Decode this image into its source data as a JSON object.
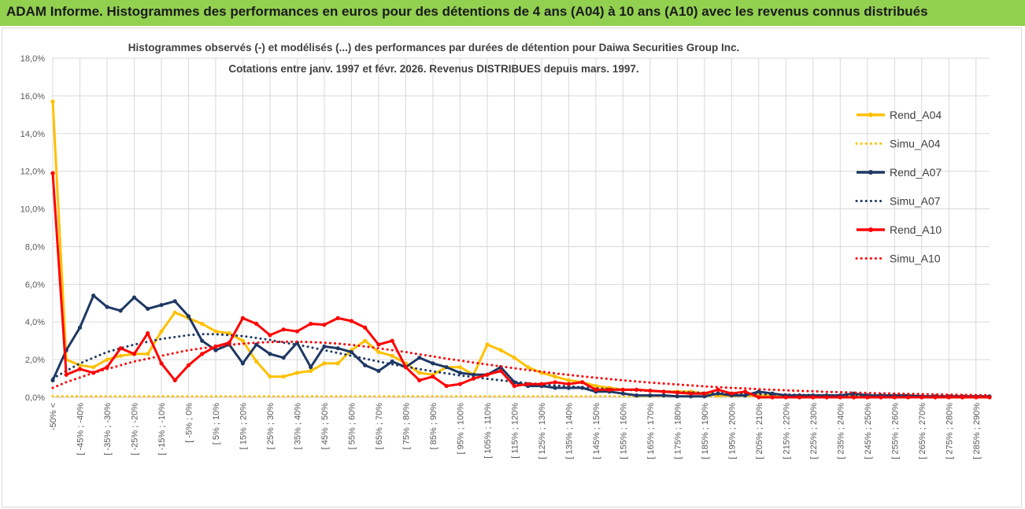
{
  "banner": {
    "title": "ADAM Informe. Histogrammes des performances en euros pour des détentions de 4 ans (A04) à 10 ans (A10) avec les revenus connus distribués"
  },
  "colors": {
    "banner_bg": "#92d050",
    "a04": "#ffc000",
    "a07": "#1f3864",
    "a10": "#ff0000",
    "grid": "#d9d9d9"
  },
  "chart_data": {
    "type": "line",
    "title_lines": [
      "Histogrammes observés (-) et modélisés (...) des performances par durées de détention pour Daiwa Securities Group Inc.",
      "Cotations entre janv. 1997 et févr. 2026. Revenus DISTRIBUES depuis mars. 1997."
    ],
    "xlabel": "",
    "ylabel": "",
    "ylim": [
      0,
      18
    ],
    "yticks": [
      "0,0%",
      "2,0%",
      "4,0%",
      "6,0%",
      "8,0%",
      "10,0%",
      "12,0%",
      "14,0%",
      "16,0%",
      "18,0%"
    ],
    "grid": true,
    "legend_position": "right",
    "category_labels": [
      "-50% <",
      "[ -45% ; -40%",
      "[ -35% ; -30%",
      "[ -25% ; -20%",
      "[ -15% ; -10%",
      "[ -5% ; 0%",
      "[ 5% ; 10%",
      "[ 15% ; 20%",
      "[ 25% ; 30%",
      "[ 35% ; 40%",
      "[ 45% ; 50%",
      "[ 55% ; 60%",
      "[ 65% ; 70%",
      "[ 75% ; 80%",
      "[ 85% ; 90%",
      "[ 95% ; 100%",
      "[ 105% ; 110%",
      "[ 115% ; 120%",
      "[ 125% ; 130%",
      "[ 135% ; 140%",
      "[ 145% ; 150%",
      "[ 155% ; 160%",
      "[ 165% ; 170%",
      "[ 175% ; 180%",
      "[ 185% ; 190%",
      "[ 195% ; 200%",
      "[ 205% ; 210%",
      "[ 215% ; 220%",
      "[ 225% ; 230%",
      "[ 235% ; 240%",
      "[ 245% ; 250%",
      "[ 255% ; 260%",
      "[ 265% ; 270%",
      "[ 275% ; 280%",
      "[ 285% ; 290%"
    ],
    "n_points": 70,
    "series": [
      {
        "name": "Rend_A04",
        "style": "solid",
        "color": "#ffc000",
        "values": [
          15.7,
          2.0,
          1.7,
          1.6,
          2.0,
          2.2,
          2.3,
          2.3,
          3.5,
          4.5,
          4.2,
          3.9,
          3.5,
          3.4,
          3.0,
          1.9,
          1.1,
          1.1,
          1.3,
          1.4,
          1.8,
          1.8,
          2.5,
          3.0,
          2.4,
          2.2,
          1.8,
          1.3,
          1.2,
          1.6,
          1.6,
          1.2,
          2.8,
          2.5,
          2.1,
          1.6,
          1.3,
          1.1,
          0.9,
          0.8,
          0.6,
          0.5,
          0.4,
          0.4,
          0.35,
          0.3,
          0.3,
          0.3,
          0.2,
          0.1,
          0.1,
          0.1,
          0.1,
          0.1,
          0.1,
          0.0,
          0.0,
          0.0,
          0.0,
          0.0,
          0.0,
          0.0,
          0.0,
          0.0,
          0.0,
          0.0,
          0.0,
          0.0,
          0.0,
          0.0
        ]
      },
      {
        "name": "Simu_A04",
        "style": "dotted",
        "color": "#ffc000",
        "values": [
          0.05,
          0.05,
          0.05,
          0.05,
          0.05,
          0.05,
          0.05,
          0.05,
          0.05,
          0.05,
          0.05,
          0.05,
          0.05,
          0.05,
          0.05,
          0.05,
          0.05,
          0.05,
          0.05,
          0.05,
          0.05,
          0.05,
          0.05,
          0.05,
          0.05,
          0.05,
          0.05,
          0.05,
          0.05,
          0.05,
          0.05,
          0.05,
          0.05,
          0.05,
          0.05,
          0.05,
          0.05,
          0.05,
          0.05,
          0.05,
          0.05,
          0.05,
          0.05,
          0.05,
          0.05,
          0.05,
          0.05,
          0.05,
          0.05,
          0.05,
          0.05,
          0.05,
          0.05,
          0.05,
          0.05,
          0.05,
          0.05,
          0.05,
          0.05,
          0.05,
          0.05,
          0.05,
          0.05,
          0.05,
          0.05,
          0.05,
          0.05,
          0.05,
          0.05,
          0.05
        ]
      },
      {
        "name": "Rend_A07",
        "style": "solid",
        "color": "#1f3864",
        "values": [
          0.9,
          2.5,
          3.7,
          5.4,
          4.8,
          4.6,
          5.3,
          4.7,
          4.9,
          5.1,
          4.3,
          3.0,
          2.5,
          2.8,
          1.8,
          2.8,
          2.3,
          2.1,
          2.9,
          1.6,
          2.7,
          2.6,
          2.4,
          1.7,
          1.4,
          1.9,
          1.6,
          2.1,
          1.8,
          1.6,
          1.3,
          1.2,
          1.2,
          1.6,
          0.8,
          0.6,
          0.6,
          0.5,
          0.5,
          0.5,
          0.3,
          0.3,
          0.2,
          0.1,
          0.1,
          0.1,
          0.05,
          0.05,
          0.05,
          0.2,
          0.1,
          0.1,
          0.3,
          0.2,
          0.1,
          0.1,
          0.1,
          0.1,
          0.1,
          0.2,
          0.1,
          0.1,
          0.1,
          0.1,
          0.05,
          0.05,
          0.05,
          0.05,
          0.05,
          0.05
        ]
      },
      {
        "name": "Simu_A07",
        "style": "dotted",
        "color": "#1f3864",
        "values": [
          1.0,
          1.4,
          1.8,
          2.1,
          2.4,
          2.6,
          2.8,
          2.95,
          3.1,
          3.2,
          3.3,
          3.35,
          3.35,
          3.3,
          3.25,
          3.15,
          3.05,
          2.9,
          2.8,
          2.65,
          2.5,
          2.35,
          2.2,
          2.05,
          1.9,
          1.75,
          1.62,
          1.5,
          1.38,
          1.27,
          1.16,
          1.07,
          0.98,
          0.9,
          0.82,
          0.75,
          0.69,
          0.63,
          0.58,
          0.53,
          0.48,
          0.44,
          0.4,
          0.37,
          0.34,
          0.31,
          0.28,
          0.26,
          0.24,
          0.22,
          0.2,
          0.18,
          0.17,
          0.15,
          0.14,
          0.13,
          0.12,
          0.11,
          0.1,
          0.09,
          0.08,
          0.08,
          0.07,
          0.06,
          0.06,
          0.05,
          0.05,
          0.05,
          0.04,
          0.04
        ]
      },
      {
        "name": "Rend_A10",
        "style": "solid",
        "color": "#ff0000",
        "values": [
          11.9,
          1.2,
          1.5,
          1.3,
          1.6,
          2.6,
          2.3,
          3.4,
          1.8,
          0.9,
          1.7,
          2.3,
          2.7,
          2.9,
          4.2,
          3.9,
          3.3,
          3.6,
          3.5,
          3.9,
          3.85,
          4.2,
          4.05,
          3.7,
          2.8,
          3.0,
          1.6,
          0.9,
          1.1,
          0.6,
          0.7,
          1.0,
          1.2,
          1.4,
          0.6,
          0.7,
          0.7,
          0.8,
          0.7,
          0.8,
          0.4,
          0.4,
          0.4,
          0.4,
          0.35,
          0.3,
          0.25,
          0.2,
          0.2,
          0.4,
          0.2,
          0.3,
          0.0,
          0.0,
          0.0,
          0.0,
          0.0,
          0.0,
          0.0,
          0.0,
          0.0,
          0.0,
          0.0,
          0.0,
          0.0,
          0.0,
          0.0,
          0.0,
          0.0,
          0.0
        ]
      },
      {
        "name": "Simu_A10",
        "style": "dotted",
        "color": "#ff0000",
        "values": [
          0.5,
          0.8,
          1.05,
          1.3,
          1.5,
          1.7,
          1.9,
          2.05,
          2.2,
          2.35,
          2.5,
          2.6,
          2.7,
          2.78,
          2.85,
          2.9,
          2.93,
          2.95,
          2.95,
          2.93,
          2.9,
          2.85,
          2.78,
          2.7,
          2.6,
          2.5,
          2.4,
          2.28,
          2.17,
          2.05,
          1.95,
          1.84,
          1.74,
          1.64,
          1.54,
          1.45,
          1.36,
          1.27,
          1.19,
          1.11,
          1.04,
          0.97,
          0.9,
          0.84,
          0.78,
          0.73,
          0.68,
          0.63,
          0.58,
          0.54,
          0.5,
          0.47,
          0.43,
          0.4,
          0.37,
          0.34,
          0.32,
          0.29,
          0.27,
          0.25,
          0.23,
          0.21,
          0.2,
          0.18,
          0.17,
          0.15,
          0.14,
          0.13,
          0.12,
          0.11
        ]
      }
    ]
  }
}
